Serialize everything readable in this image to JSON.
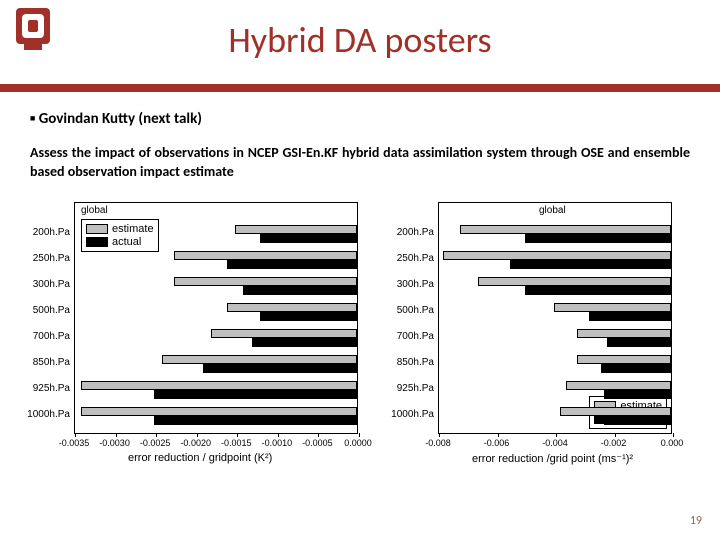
{
  "header": {
    "title": "Hybrid DA posters",
    "title_color": "#a03028",
    "divider_color": "#a03028"
  },
  "bullet": "Govindan Kutty (next talk)",
  "description": "Assess the impact of observations in NCEP GSI-En.KF hybrid data assimilation system through OSE and ensemble based observation impact estimate",
  "left_chart": {
    "type": "bar",
    "title": "global",
    "xlabel": "error reduction / gridpoint (K²)",
    "xticks": [
      "-0.0035",
      "-0.0030",
      "-0.0025",
      "-0.0020",
      "-0.0015",
      "-0.0010",
      "-0.0005",
      "0.0000"
    ],
    "xlim": [
      -0.0035,
      0.0
    ],
    "categories": [
      "200h.Pa",
      "250h.Pa",
      "300h.Pa",
      "500h.Pa",
      "700h.Pa",
      "850h.Pa",
      "925h.Pa",
      "1000h.Pa"
    ],
    "estimate_values": [
      -0.0015,
      -0.00225,
      -0.00225,
      -0.0016,
      -0.0018,
      -0.0024,
      -0.0034,
      -0.0034
    ],
    "actual_values": [
      -0.0012,
      -0.0016,
      -0.0014,
      -0.0012,
      -0.0013,
      -0.0019,
      -0.0025,
      -0.0025
    ],
    "estimate_color": "#bfbfbf",
    "actual_color": "#000000",
    "legend": {
      "position": "top-left",
      "items": [
        "estimate",
        "actual"
      ]
    },
    "background_color": "#ffffff"
  },
  "right_chart": {
    "type": "bar",
    "title": "global",
    "xlabel": "error reduction /grid point (ms⁻¹)²",
    "xticks": [
      "-0.008",
      "-0.006",
      "-0.004",
      "-0.002",
      "0.000"
    ],
    "xlim": [
      -0.008,
      0.0
    ],
    "categories": [
      "200h.Pa",
      "250h.Pa",
      "300h.Pa",
      "500h.Pa",
      "700h.Pa",
      "850h.Pa",
      "925h.Pa",
      "1000h.Pa"
    ],
    "estimate_values": [
      -0.0072,
      -0.0078,
      -0.0066,
      -0.004,
      -0.0032,
      -0.0032,
      -0.0036,
      -0.0038
    ],
    "actual_values": [
      -0.005,
      -0.0055,
      -0.005,
      -0.0028,
      -0.0022,
      -0.0024,
      -0.0023,
      -0.0023
    ],
    "estimate_color": "#bfbfbf",
    "actual_color": "#000000",
    "legend": {
      "position": "bottom-right",
      "items": [
        "estimate",
        "actual"
      ]
    },
    "background_color": "#ffffff"
  },
  "slide_number": "19"
}
